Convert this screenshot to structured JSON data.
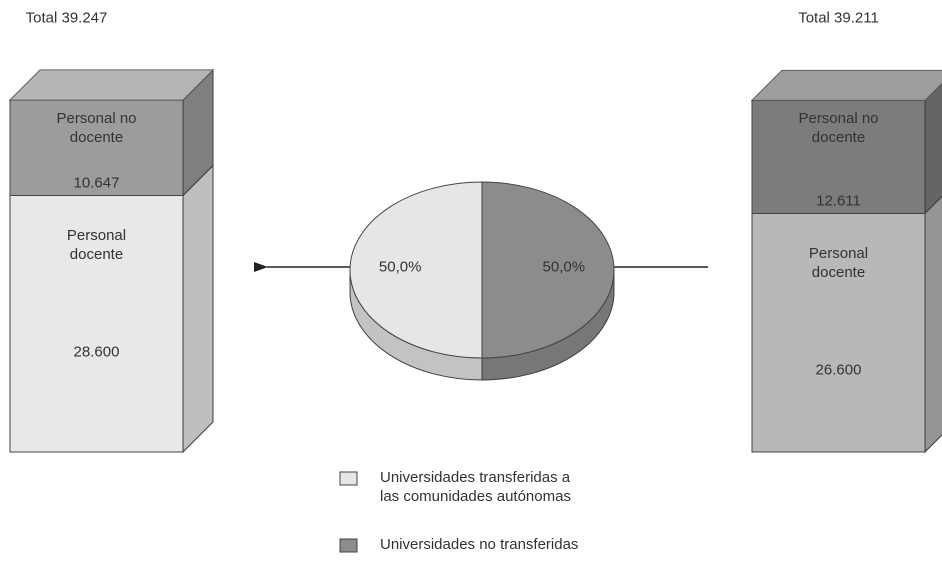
{
  "chart_data": [
    {
      "type": "pie",
      "categories": [
        "Universidades transferidas a las comunidades autónomas",
        "Universidades no transferidas"
      ],
      "values": [
        50.0,
        50.0
      ],
      "value_labels": [
        "50,0%",
        "50,0%"
      ],
      "colors": [
        "#e6e6e6",
        "#8c8c8c"
      ]
    },
    {
      "type": "stacked-bar",
      "title": "Total 39.247",
      "series": [
        {
          "name": "Personal docente",
          "values": [
            28600
          ],
          "value_labels": [
            "28.600"
          ],
          "color": "#e8e8e8"
        },
        {
          "name": "Personal no docente",
          "values": [
            10647
          ],
          "value_labels": [
            "10.647"
          ],
          "color": "#9c9c9c"
        }
      ]
    },
    {
      "type": "stacked-bar",
      "title": "Total 39.211",
      "series": [
        {
          "name": "Personal docente",
          "values": [
            26600
          ],
          "value_labels": [
            "26.600"
          ],
          "color": "#b8b8b8"
        },
        {
          "name": "Personal no docente",
          "values": [
            12611
          ],
          "value_labels": [
            "12.611"
          ],
          "color": "#7c7c7c"
        }
      ]
    }
  ]
}
